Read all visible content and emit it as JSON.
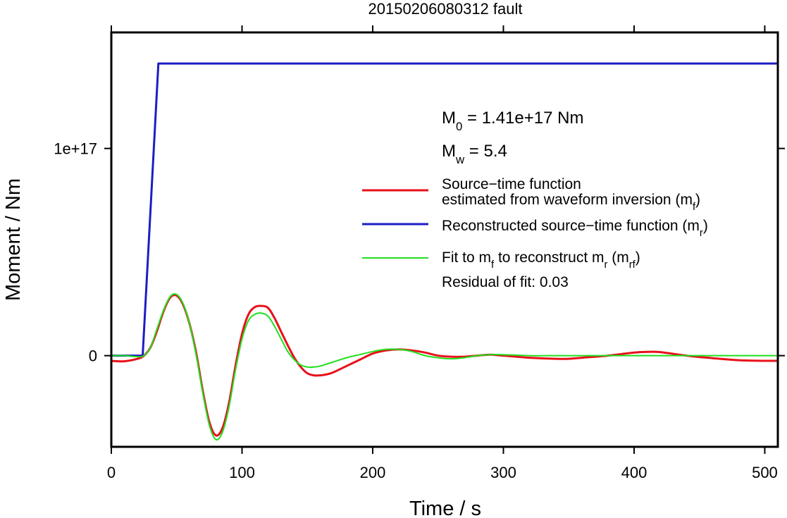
{
  "chart_data": {
    "type": "line",
    "title": "20150206080312 fault",
    "xlabel": "Time / s",
    "ylabel": "Moment / Nm",
    "xlim": [
      0,
      510
    ],
    "ylim": [
      -4.4e+16,
      1.56e+17
    ],
    "x_ticks": [
      {
        "value": 0,
        "label": "0"
      },
      {
        "value": 100,
        "label": "100"
      },
      {
        "value": 200,
        "label": "200"
      },
      {
        "value": 300,
        "label": "300"
      },
      {
        "value": 400,
        "label": "400"
      },
      {
        "value": 500,
        "label": "500"
      }
    ],
    "y_ticks": [
      {
        "value": 0,
        "label": "0"
      },
      {
        "value": 1e+17,
        "label": "1e+17"
      }
    ],
    "grid": false,
    "legend_position": "right",
    "annotations": {
      "m0": {
        "sym": "M",
        "sub": "0",
        "rest": " = 1.41e+17 Nm"
      },
      "mw": {
        "sym": "M",
        "sub": "w",
        "rest": " = 5.4"
      },
      "residual": "Residual of fit: 0.03"
    },
    "series": [
      {
        "name": "Source-time function estimated from waveform inversion (mf)",
        "color": "#e8101a",
        "stroke_width": 3,
        "legend": [
          {
            "text": "Source−time function"
          },
          {
            "text": "estimated from waveform inversion (m",
            "sub": "f",
            "tail": ")"
          }
        ],
        "x": [
          0,
          10,
          20,
          25,
          30,
          35,
          40,
          45,
          50,
          55,
          60,
          65,
          70,
          75,
          80,
          85,
          90,
          95,
          100,
          105,
          110,
          115,
          120,
          125,
          130,
          135,
          140,
          145,
          150,
          155,
          160,
          165,
          170,
          180,
          190,
          200,
          210,
          220,
          230,
          240,
          250,
          260,
          270,
          280,
          290,
          300,
          320,
          340,
          350,
          360,
          380,
          400,
          410,
          420,
          440,
          460,
          480,
          500,
          510
        ],
        "y": [
          -2500000000000000.0,
          -2700000000000000.0,
          -1500000000000000.0,
          0,
          4000000000000000.0,
          1.2e+16,
          2.15e+16,
          2.8e+16,
          2.9e+16,
          2.45e+16,
          1.5e+16,
          1000000000000000.0,
          -1.7e+16,
          -3.2e+16,
          -3.85e+16,
          -3.5e+16,
          -2.3e+16,
          -5000000000000000.0,
          1.05e+16,
          2e+16,
          2.35e+16,
          2.4e+16,
          2.3e+16,
          1.8e+16,
          1.15e+16,
          5000000000000000.0,
          -1000000000000000.0,
          -5500000000000000.0,
          -8500000000000000.0,
          -9500000000000000.0,
          -9500000000000000.0,
          -9000000000000000.0,
          -8000000000000000.0,
          -5000000000000000.0,
          -2000000000000000.0,
          1000000000000000.0,
          2500000000000000.0,
          3000000000000000.0,
          2500000000000000.0,
          1500000000000000.0,
          0,
          -500000000000000.0,
          -500000000000000.0,
          0,
          500000000000000.0,
          0,
          -1000000000000000.0,
          -1500000000000000.0,
          -1500000000000000.0,
          -1000000000000000.0,
          0,
          1500000000000000.0,
          1800000000000000.0,
          1700000000000000.0,
          0,
          -1200000000000000.0,
          -2200000000000000.0,
          -2500000000000000.0,
          -2500000000000000.0
        ]
      },
      {
        "name": "Reconstructed source-time function (mr)",
        "color": "#1d1dc4",
        "stroke_width": 3,
        "legend": [
          {
            "text": "Reconstructed source−time function (m",
            "sub": "r",
            "tail": ")"
          }
        ],
        "x": [
          0,
          24,
          36,
          510
        ],
        "y": [
          0,
          0,
          1.41e+17,
          1.41e+17
        ]
      },
      {
        "name": "Fit to mf to reconstruct mr (mrf)",
        "color": "#1fe01f",
        "stroke_width": 2,
        "legend": [
          {
            "text": "Fit to m",
            "sub": "f",
            "tail": " to reconstruct m"
          },
          {
            "text": "",
            "sub": "r",
            "tail": " (m"
          },
          {
            "text": "",
            "sub": "rf",
            "tail": ")"
          }
        ],
        "x": [
          0,
          10,
          20,
          25,
          30,
          35,
          40,
          45,
          50,
          55,
          60,
          65,
          70,
          75,
          80,
          85,
          90,
          95,
          100,
          105,
          110,
          115,
          120,
          125,
          130,
          135,
          140,
          145,
          150,
          155,
          160,
          165,
          170,
          180,
          190,
          200,
          210,
          220,
          230,
          240,
          250,
          260,
          270,
          280,
          290,
          300,
          320,
          340,
          350,
          360,
          380,
          400,
          410,
          420,
          440,
          460,
          480,
          500,
          510
        ],
        "y": [
          0,
          0,
          -500000000000000.0,
          0,
          4000000000000000.0,
          1.3e+16,
          2.2e+16,
          2.85e+16,
          2.95e+16,
          2.5e+16,
          1.5e+16,
          0,
          -1.8e+16,
          -3.35e+16,
          -4.05e+16,
          -3.7e+16,
          -2.5e+16,
          -7000000000000000.0,
          8000000000000000.0,
          1.7e+16,
          2e+16,
          2.05e+16,
          1.9e+16,
          1.4e+16,
          8000000000000000.0,
          2000000000000000.0,
          -2000000000000000.0,
          -4500000000000000.0,
          -5500000000000000.0,
          -5500000000000000.0,
          -5000000000000000.0,
          -4000000000000000.0,
          -3000000000000000.0,
          -1000000000000000.0,
          500000000000000.0,
          2000000000000000.0,
          3000000000000000.0,
          3000000000000000.0,
          2000000000000000.0,
          0,
          -1000000000000000.0,
          -1500000000000000.0,
          -1000000000000000.0,
          0,
          500000000000000.0,
          500000000000000.0,
          0,
          0,
          0,
          0,
          0,
          0,
          0,
          0,
          0,
          0,
          0,
          0,
          0
        ]
      }
    ]
  }
}
